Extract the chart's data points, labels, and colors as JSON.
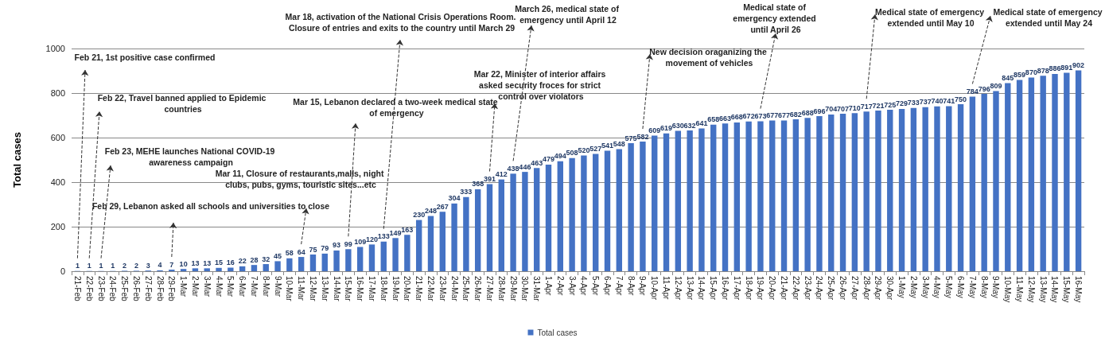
{
  "chart_data": {
    "type": "bar",
    "ylabel": "Total cases",
    "categories": [
      "21-Feb",
      "22-Feb",
      "23-Feb",
      "24-Feb",
      "25-Feb",
      "26-Feb",
      "27-Feb",
      "28-Feb",
      "29-Feb",
      "1-Mar",
      "2-Mar",
      "3-Mar",
      "4-Mar",
      "5-Mar",
      "6-Mar",
      "7-Mar",
      "8-Mar",
      "9-Mar",
      "10-Mar",
      "11-Mar",
      "12-Mar",
      "13-Mar",
      "14-Mar",
      "15-Mar",
      "16-Mar",
      "17-Mar",
      "18-Mar",
      "19-Mar",
      "20-Mar",
      "21-Mar",
      "22-Mar",
      "23-Mar",
      "24-Mar",
      "25-Mar",
      "26-Mar",
      "27-Mar",
      "28-Mar",
      "29-Mar",
      "30-Mar",
      "31-Mar",
      "1-Apr",
      "2-Apr",
      "3-Apr",
      "4-Apr",
      "5-Apr",
      "6-Apr",
      "7-Apr",
      "8-Apr",
      "9-Apr",
      "10-Apr",
      "11-Apr",
      "12-Apr",
      "13-Apr",
      "14-Apr",
      "15-Apr",
      "16-Apr",
      "17-Apr",
      "18-Apr",
      "19-Apr",
      "20-Apr",
      "21-Apr",
      "22-Apr",
      "23-Apr",
      "24-Apr",
      "25-Apr",
      "26-Apr",
      "27-Apr",
      "28-Apr",
      "29-Apr",
      "30-Apr",
      "1-May",
      "2-May",
      "3-May",
      "4-May",
      "5-May",
      "6-May",
      "7-May",
      "8-May",
      "9-May",
      "10-May",
      "11-May",
      "12-May",
      "13-May",
      "14-May",
      "15-May",
      "16-May"
    ],
    "series": [
      {
        "name": "Total cases",
        "color": "#4472c4",
        "values": [
          1,
          1,
          1,
          1,
          2,
          2,
          3,
          4,
          7,
          10,
          13,
          13,
          15,
          16,
          22,
          28,
          32,
          45,
          58,
          64,
          75,
          79,
          93,
          99,
          109,
          120,
          133,
          149,
          163,
          230,
          248,
          267,
          304,
          333,
          368,
          391,
          412,
          438,
          446,
          463,
          479,
          494,
          508,
          520,
          527,
          541,
          548,
          575,
          582,
          609,
          619,
          630,
          632,
          641,
          658,
          663,
          668,
          672,
          673,
          677,
          677,
          682,
          688,
          696,
          704,
          707,
          710,
          717,
          721,
          725,
          729,
          733,
          737,
          740,
          741,
          750,
          784,
          796,
          809,
          845,
          859,
          870,
          878,
          886,
          891,
          902
        ]
      }
    ],
    "ylim": [
      0,
      1000
    ],
    "yticks": [
      0,
      200,
      400,
      600,
      800,
      1000
    ],
    "grid": "y",
    "legend": "bottom",
    "data_labels": true,
    "annotations": [
      "Feb 21, 1st positive case confirmed",
      "Feb 22, Travel banned applied to Epidemic countries",
      "Feb 23, MEHE launches National COVID-19 awareness campaign",
      "Feb 29, Lebanon asked all schools and universities to close",
      "Mar 11, Closure of restaurants,malls, night clubs, pubs, gyms, touristic sites...etc",
      "Mar 15, Lebanon declared a two-week medical state of emergency",
      "Mar 18, activation of the National Crisis Operations Room. Closure of entries and exits to the country until March 29",
      "Mar 22, Minister of interior affairs asked security froces for strict control over violators",
      "March 26, medical state of emergency until April 12",
      "New decision oraganizing the movement of vehicles",
      "Medical state of emergency extended until April 26",
      "Medical state of emergency extended until May 10",
      "Medical state of emergency extended until May 24"
    ]
  }
}
